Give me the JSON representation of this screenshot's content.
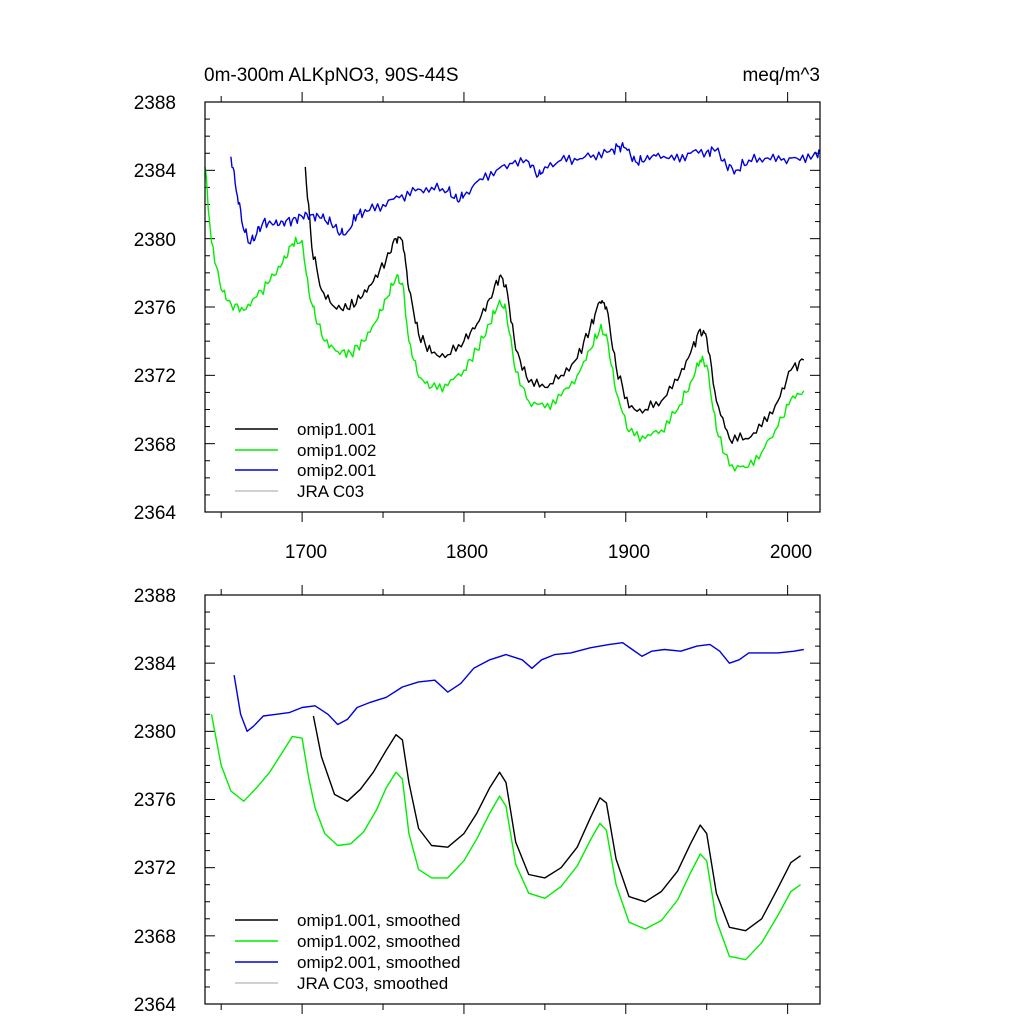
{
  "chart_data": [
    {
      "type": "line",
      "title": "0m-300m ALKpNO3, 90S-44S",
      "units": "meq/m^3",
      "xlim": [
        1640,
        2020
      ],
      "ylim": [
        2364,
        2388
      ],
      "xticks": [
        "1700",
        "1800",
        "1900",
        "2000"
      ],
      "yticks": [
        "2364",
        "2368",
        "2372",
        "2376",
        "2380",
        "2384",
        "2388"
      ],
      "legend_position": "bottom-left",
      "series": [
        {
          "name": "omip1.001",
          "color": "#000000",
          "x": [
            1702,
            1706,
            1712,
            1720,
            1728,
            1736,
            1744,
            1752,
            1758,
            1762,
            1766,
            1772,
            1780,
            1790,
            1800,
            1808,
            1816,
            1822,
            1826,
            1832,
            1840,
            1850,
            1860,
            1870,
            1878,
            1884,
            1888,
            1894,
            1902,
            1912,
            1922,
            1932,
            1940,
            1946,
            1950,
            1956,
            1964,
            1974,
            1984,
            1994,
            2002,
            2010
          ],
          "y": [
            2384.2,
            2379.5,
            2377.0,
            2376.0,
            2375.9,
            2376.5,
            2377.5,
            2378.8,
            2380.0,
            2379.9,
            2377.0,
            2374.4,
            2373.3,
            2373.2,
            2374.0,
            2375.0,
            2376.5,
            2377.8,
            2377.3,
            2373.5,
            2371.6,
            2371.3,
            2372.0,
            2373.0,
            2374.8,
            2376.3,
            2376.0,
            2372.5,
            2370.1,
            2370.0,
            2370.5,
            2371.7,
            2373.3,
            2374.7,
            2374.2,
            2370.5,
            2368.3,
            2368.3,
            2369.0,
            2370.5,
            2372.3,
            2372.9
          ]
        },
        {
          "name": "omip1.002",
          "color": "#00ee00",
          "x": [
            1640,
            1644,
            1650,
            1656,
            1664,
            1672,
            1680,
            1688,
            1694,
            1700,
            1704,
            1708,
            1714,
            1722,
            1730,
            1738,
            1746,
            1752,
            1758,
            1762,
            1766,
            1772,
            1780,
            1790,
            1800,
            1808,
            1816,
            1822,
            1826,
            1832,
            1840,
            1850,
            1860,
            1870,
            1878,
            1884,
            1888,
            1894,
            1902,
            1912,
            1922,
            1932,
            1940,
            1946,
            1950,
            1956,
            1964,
            1974,
            1984,
            1994,
            2002,
            2010
          ],
          "y": [
            2384.2,
            2379.8,
            2377.0,
            2376.2,
            2375.8,
            2376.6,
            2377.5,
            2378.6,
            2379.7,
            2379.9,
            2377.0,
            2375.5,
            2374.0,
            2373.4,
            2373.3,
            2374.0,
            2375.2,
            2376.5,
            2377.7,
            2377.4,
            2374.0,
            2371.9,
            2371.3,
            2371.4,
            2372.3,
            2373.5,
            2375.0,
            2376.4,
            2375.8,
            2372.2,
            2370.5,
            2370.1,
            2370.8,
            2372.0,
            2373.5,
            2374.7,
            2374.4,
            2371.0,
            2368.7,
            2368.3,
            2368.8,
            2370.0,
            2371.6,
            2372.9,
            2372.6,
            2368.8,
            2366.7,
            2366.6,
            2367.5,
            2369.0,
            2370.6,
            2371.1
          ]
        },
        {
          "name": "omip2.001",
          "color": "#0000dd",
          "x": [
            1656,
            1660,
            1664,
            1668,
            1672,
            1676,
            1682,
            1688,
            1694,
            1700,
            1706,
            1712,
            1718,
            1724,
            1728,
            1734,
            1740,
            1750,
            1760,
            1770,
            1780,
            1790,
            1796,
            1800,
            1810,
            1820,
            1830,
            1840,
            1846,
            1850,
            1860,
            1870,
            1880,
            1890,
            1896,
            1900,
            1906,
            1912,
            1920,
            1930,
            1940,
            1950,
            1956,
            1962,
            1968,
            1976,
            1986,
            1996,
            2006,
            2016,
            2020
          ],
          "y": [
            2384.8,
            2382.5,
            2380.5,
            2379.7,
            2380.3,
            2381.0,
            2380.8,
            2381.0,
            2381.1,
            2381.3,
            2381.4,
            2381.2,
            2380.9,
            2380.3,
            2380.4,
            2381.4,
            2381.6,
            2382.0,
            2382.4,
            2382.8,
            2383.0,
            2382.8,
            2382.2,
            2382.5,
            2383.5,
            2384.0,
            2384.4,
            2384.5,
            2383.7,
            2384.2,
            2384.6,
            2384.6,
            2384.9,
            2385.1,
            2385.4,
            2385.3,
            2384.5,
            2384.6,
            2385.0,
            2384.6,
            2385.0,
            2385.1,
            2385.2,
            2384.3,
            2384.0,
            2384.6,
            2384.7,
            2384.6,
            2384.7,
            2384.9,
            2385.1
          ]
        },
        {
          "name": "JRA C03",
          "color": "#c0c0c0",
          "x": [],
          "y": []
        }
      ]
    },
    {
      "type": "line",
      "title": "",
      "xlim": [
        1640,
        2020
      ],
      "ylim": [
        2364,
        2388
      ],
      "xticks": [],
      "yticks": [
        "2364",
        "2368",
        "2372",
        "2376",
        "2380",
        "2384",
        "2388"
      ],
      "legend_position": "bottom-left",
      "series": [
        {
          "name": "omip1.001, smoothed",
          "color": "#000000",
          "x": [
            1707,
            1712,
            1720,
            1728,
            1736,
            1744,
            1752,
            1758,
            1762,
            1766,
            1772,
            1780,
            1790,
            1800,
            1808,
            1816,
            1822,
            1826,
            1832,
            1840,
            1850,
            1860,
            1870,
            1878,
            1884,
            1888,
            1894,
            1902,
            1912,
            1922,
            1932,
            1940,
            1946,
            1950,
            1956,
            1964,
            1974,
            1984,
            1994,
            2002,
            2008
          ],
          "y": [
            2380.9,
            2378.5,
            2376.3,
            2375.9,
            2376.6,
            2377.6,
            2378.9,
            2379.8,
            2379.5,
            2377.0,
            2374.3,
            2373.3,
            2373.2,
            2374.0,
            2375.2,
            2376.7,
            2377.6,
            2377.0,
            2373.5,
            2371.6,
            2371.4,
            2372.0,
            2373.2,
            2374.9,
            2376.1,
            2375.8,
            2372.5,
            2370.3,
            2370.0,
            2370.6,
            2371.8,
            2373.4,
            2374.5,
            2374.0,
            2370.5,
            2368.5,
            2368.3,
            2369.0,
            2370.8,
            2372.3,
            2372.7
          ]
        },
        {
          "name": "omip1.002, smoothed",
          "color": "#00ee00",
          "x": [
            1644,
            1650,
            1656,
            1664,
            1672,
            1680,
            1688,
            1694,
            1700,
            1704,
            1708,
            1714,
            1722,
            1730,
            1738,
            1746,
            1752,
            1758,
            1762,
            1766,
            1772,
            1780,
            1790,
            1800,
            1808,
            1816,
            1822,
            1826,
            1832,
            1840,
            1850,
            1860,
            1870,
            1878,
            1884,
            1888,
            1894,
            1902,
            1912,
            1922,
            1932,
            1940,
            1946,
            1950,
            1956,
            1964,
            1974,
            1984,
            1994,
            2002,
            2008
          ],
          "y": [
            2381.0,
            2378.0,
            2376.5,
            2375.9,
            2376.7,
            2377.6,
            2378.8,
            2379.7,
            2379.6,
            2377.3,
            2375.5,
            2374.0,
            2373.3,
            2373.4,
            2374.1,
            2375.4,
            2376.7,
            2377.6,
            2377.2,
            2374.0,
            2371.9,
            2371.4,
            2371.4,
            2372.4,
            2373.7,
            2375.2,
            2376.2,
            2375.6,
            2372.2,
            2370.5,
            2370.2,
            2370.9,
            2372.1,
            2373.6,
            2374.6,
            2374.2,
            2371.0,
            2368.8,
            2368.4,
            2368.9,
            2370.1,
            2371.7,
            2372.8,
            2372.4,
            2368.9,
            2366.8,
            2366.6,
            2367.6,
            2369.2,
            2370.6,
            2371.0
          ]
        },
        {
          "name": "omip2.001, smoothed",
          "color": "#0000dd",
          "x": [
            1658,
            1662,
            1666,
            1670,
            1676,
            1684,
            1692,
            1700,
            1708,
            1716,
            1722,
            1728,
            1734,
            1742,
            1752,
            1762,
            1772,
            1782,
            1790,
            1798,
            1806,
            1816,
            1826,
            1836,
            1842,
            1848,
            1856,
            1866,
            1878,
            1890,
            1898,
            1904,
            1910,
            1916,
            1924,
            1934,
            1944,
            1952,
            1958,
            1964,
            1970,
            1976,
            1984,
            1994,
            2004,
            2010
          ],
          "y": [
            2383.3,
            2381.0,
            2380.0,
            2380.3,
            2380.9,
            2381.0,
            2381.1,
            2381.4,
            2381.5,
            2381.0,
            2380.4,
            2380.7,
            2381.4,
            2381.7,
            2382.0,
            2382.6,
            2382.9,
            2383.0,
            2382.3,
            2382.8,
            2383.7,
            2384.2,
            2384.5,
            2384.2,
            2383.7,
            2384.2,
            2384.5,
            2384.6,
            2384.9,
            2385.1,
            2385.2,
            2384.8,
            2384.4,
            2384.7,
            2384.8,
            2384.7,
            2385.0,
            2385.1,
            2384.7,
            2384.0,
            2384.2,
            2384.6,
            2384.6,
            2384.6,
            2384.7,
            2384.8
          ]
        },
        {
          "name": "JRA C03, smoothed",
          "color": "#c0c0c0",
          "x": [],
          "y": []
        }
      ]
    }
  ]
}
